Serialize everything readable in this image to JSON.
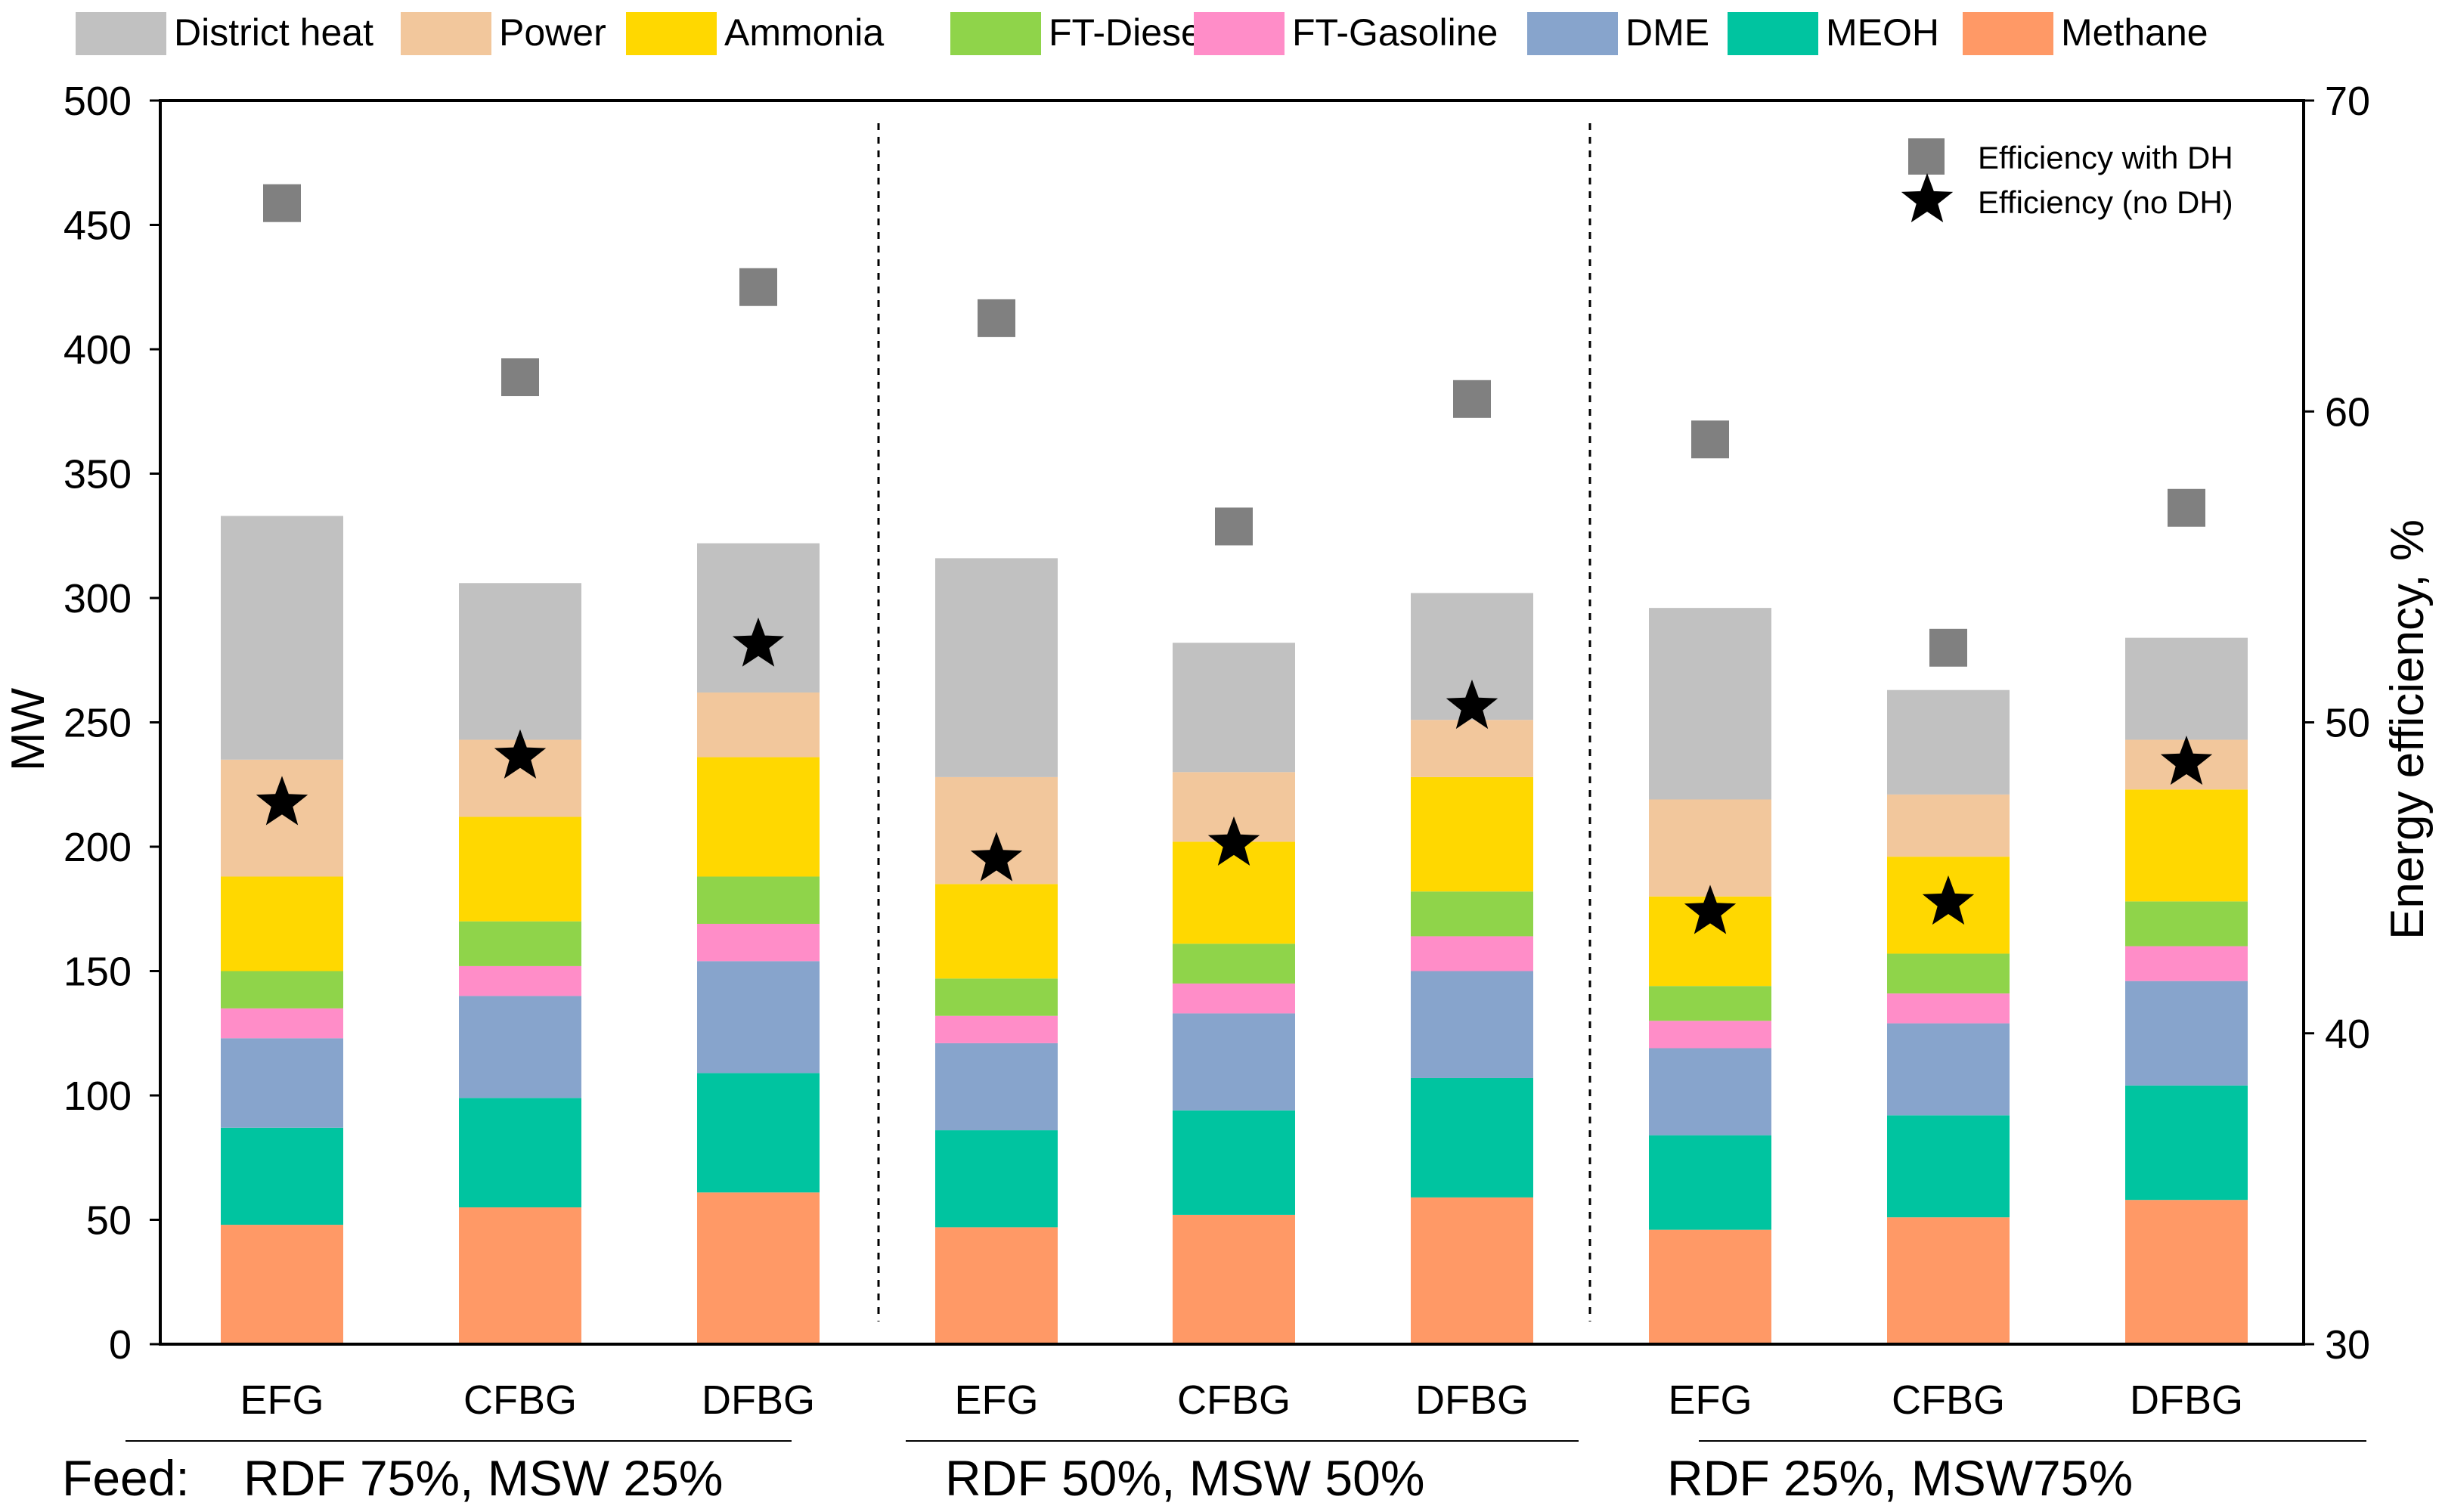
{
  "chart_data": {
    "type": "bar",
    "subtype": "stacked-bar-with-scatter",
    "legend_position": "top",
    "stack_series": [
      {
        "name": "Methane",
        "color": "#FF9966"
      },
      {
        "name": "MEOH",
        "color": "#00C4A0"
      },
      {
        "name": "DME",
        "color": "#87A4CC"
      },
      {
        "name": "FT-Gasoline",
        "color": "#FF8DC8"
      },
      {
        "name": "FT-Diesel",
        "color": "#8FD44A"
      },
      {
        "name": "Ammonia",
        "color": "#FFD800"
      },
      {
        "name": "Power",
        "color": "#F2C79C"
      },
      {
        "name": "District heat",
        "color": "#C1C1C1"
      }
    ],
    "legend_order": [
      "District heat",
      "Power",
      "Ammonia",
      "FT-Diesel",
      "FT-Gasoline",
      "DME",
      "MEOH",
      "Methane"
    ],
    "categories": [
      "EFG",
      "CFBG",
      "DFBG",
      "EFG",
      "CFBG",
      "DFBG",
      "EFG",
      "CFBG",
      "DFBG"
    ],
    "groups": [
      {
        "label": "RDF 75%, MSW 25%",
        "prefix": "Feed:",
        "span": [
          0,
          2
        ]
      },
      {
        "label": "RDF 50%, MSW 50%",
        "prefix": "",
        "span": [
          3,
          5
        ]
      },
      {
        "label": "RDF 25%, MSW75%",
        "prefix": "",
        "span": [
          6,
          8
        ]
      }
    ],
    "bars": [
      [
        48,
        39,
        36,
        12,
        15,
        38,
        47,
        98
      ],
      [
        55,
        44,
        41,
        12,
        18,
        42,
        31,
        63
      ],
      [
        61,
        48,
        45,
        15,
        19,
        48,
        26,
        60
      ],
      [
        47,
        39,
        35,
        11,
        15,
        38,
        43,
        88
      ],
      [
        52,
        42,
        39,
        12,
        16,
        41,
        28,
        52
      ],
      [
        59,
        48,
        43,
        14,
        18,
        46,
        23,
        51
      ],
      [
        46,
        38,
        35,
        11,
        14,
        36,
        39,
        77
      ],
      [
        51,
        41,
        37,
        12,
        16,
        39,
        25,
        42
      ],
      [
        58,
        46,
        42,
        14,
        18,
        45,
        20,
        41
      ]
    ],
    "efficiency_series": [
      {
        "name": "Efficiency with DH",
        "marker": "square",
        "color": "#808080",
        "values": [
          66.7,
          61.1,
          64.0,
          63.0,
          56.3,
          60.4,
          59.1,
          52.4,
          56.9
        ]
      },
      {
        "name": "Efficiency (no DH)",
        "marker": "star",
        "color": "#000000",
        "values": [
          47.4,
          48.9,
          52.5,
          45.6,
          46.1,
          50.5,
          43.9,
          44.2,
          48.7
        ]
      }
    ],
    "ylabel": "MW",
    "ylim": [
      0,
      500
    ],
    "yticks": [
      0,
      50,
      100,
      150,
      200,
      250,
      300,
      350,
      400,
      450,
      500
    ],
    "y2label": "Energy efficiency, %",
    "y2lim": [
      30,
      70
    ],
    "y2ticks": [
      30,
      40,
      50,
      60,
      70
    ],
    "grid": false
  }
}
